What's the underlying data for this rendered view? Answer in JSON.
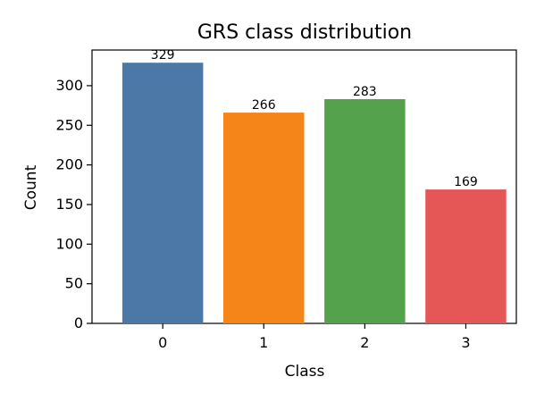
{
  "chart_data": {
    "type": "bar",
    "title": "GRS class distribution",
    "xlabel": "Class",
    "ylabel": "Count",
    "categories": [
      "0",
      "1",
      "2",
      "3"
    ],
    "values": [
      329,
      266,
      283,
      169
    ],
    "data_labels": [
      "329",
      "266",
      "283",
      "169"
    ],
    "colors": [
      "#4C78A8",
      "#F58518",
      "#54A24B",
      "#E45756"
    ],
    "ylim": [
      0,
      345
    ],
    "yticks": [
      0,
      50,
      100,
      150,
      200,
      250,
      300
    ],
    "ytick_labels": [
      "0",
      "50",
      "100",
      "150",
      "200",
      "250",
      "300"
    ],
    "grid": false,
    "legend": "none"
  }
}
